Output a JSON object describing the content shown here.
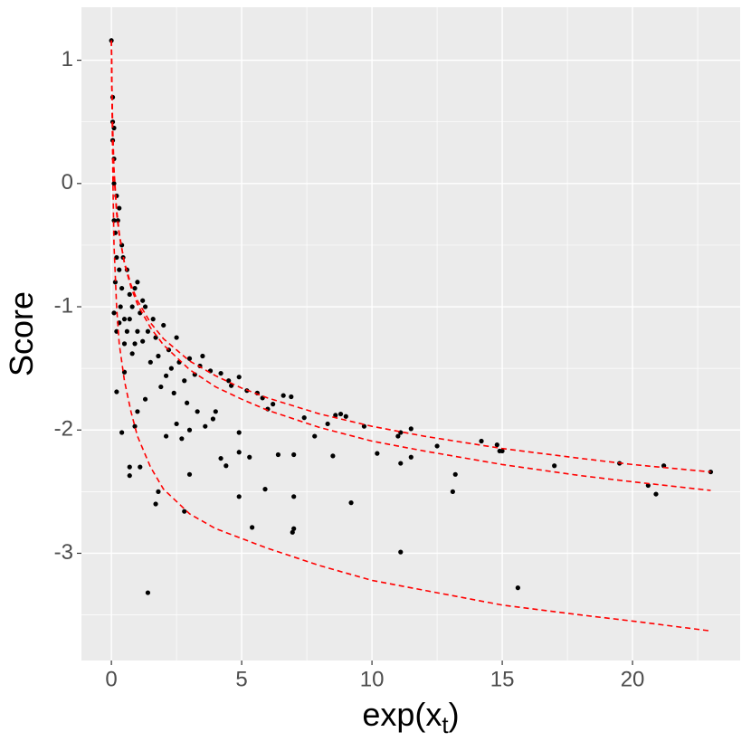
{
  "chart_data": {
    "type": "scatter",
    "x_label": [
      "exp(x",
      "t",
      ")"
    ],
    "y_label": "Score",
    "xlim": [
      -1.15,
      24.13
    ],
    "ylim": [
      -3.87,
      1.43
    ],
    "xticks": [
      0,
      5,
      10,
      15,
      20
    ],
    "yticks": [
      1,
      0,
      -1,
      -2,
      -3
    ],
    "xminor": [
      2.5,
      7.5,
      12.5,
      17.5,
      22.5
    ],
    "yminor": [
      0.5,
      -0.5,
      -1.5,
      -2.5,
      -3.5
    ],
    "grid": true,
    "series": [
      {
        "type": "scatter",
        "color": "#000000",
        "x": [
          0,
          1.4,
          15.6,
          11.1,
          9.2,
          5.4,
          7,
          6.95,
          7,
          5.9,
          4.9,
          2.8,
          1.7,
          1.8,
          0.7,
          0.7,
          1.1,
          3,
          4.2,
          4.4,
          4.9,
          5.3,
          6.4,
          7,
          8.5,
          10.2,
          11.1,
          11.5,
          13.1,
          13.2,
          12.5,
          14.9,
          15,
          14.8,
          14.2,
          17,
          19.5,
          20.6,
          20.9,
          21.2,
          23,
          11,
          11.1,
          11.5,
          9.7,
          8.8,
          8.6,
          9,
          8.3,
          7.4,
          7.8,
          6.6,
          6.9,
          6.2,
          6,
          5.8,
          5.6,
          5.2,
          4.9,
          4.9,
          4.6,
          4.2,
          4,
          3.9,
          3.6,
          3.3,
          3,
          2.9,
          2.7,
          2.5,
          2.4,
          2.1,
          1.9,
          2.1,
          1.3,
          1,
          0.9,
          0.2,
          0.4,
          0.5,
          0.3,
          0.2,
          0.35,
          0.5,
          0.8,
          1,
          1.2,
          1.5,
          1.8,
          2.2,
          2.6,
          3,
          3.4,
          3.8,
          1,
          1.3,
          1.6,
          2,
          2.5,
          3.5,
          0.6,
          0.7,
          0.8,
          0.4,
          0.25,
          0.2,
          0.1,
          0.05,
          0.05,
          0.1,
          0.15,
          0.3,
          0.4,
          0.5,
          0.6,
          0.1,
          0.2,
          0.15,
          0.1,
          0.05,
          0.1,
          0.3,
          0.45,
          0.7,
          0.9,
          1.1,
          1.4,
          1.7,
          2.3,
          2.8,
          3.2,
          4.5,
          1.2,
          0.9
        ],
        "values": [
          1.16,
          -3.32,
          -3.28,
          -2.99,
          -2.59,
          -2.79,
          -2.8,
          -2.83,
          -2.54,
          -2.48,
          -2.54,
          -2.66,
          -2.6,
          -2.5,
          -2.37,
          -2.3,
          -2.3,
          -2.36,
          -2.23,
          -2.29,
          -2.18,
          -2.22,
          -2.2,
          -2.2,
          -2.21,
          -2.19,
          -2.27,
          -2.22,
          -2.5,
          -2.36,
          -2.13,
          -2.17,
          -2.17,
          -2.12,
          -2.09,
          -2.29,
          -2.27,
          -2.45,
          -2.52,
          -2.29,
          -2.34,
          -2.05,
          -2.02,
          -1.99,
          -1.97,
          -1.87,
          -1.88,
          -1.89,
          -1.95,
          -1.9,
          -2.05,
          -1.72,
          -1.73,
          -1.79,
          -1.83,
          -1.74,
          -1.7,
          -1.68,
          -1.57,
          -2.02,
          -1.64,
          -1.54,
          -1.85,
          -1.91,
          -1.97,
          -1.85,
          -2,
          -1.78,
          -2.07,
          -1.95,
          -1.7,
          -1.56,
          -1.65,
          -2.05,
          -1.75,
          -1.85,
          -1.97,
          -1.69,
          -2.02,
          -1.53,
          -1.13,
          -1.2,
          -1,
          -1.3,
          -1.38,
          -1.2,
          -1.28,
          -1.45,
          -1.4,
          -1.35,
          -1.45,
          -1.42,
          -1.48,
          -1.52,
          -0.8,
          -1,
          -1.1,
          -1.15,
          -1.25,
          -1.4,
          -0.7,
          -0.9,
          -1,
          -0.5,
          -0.3,
          -0.1,
          0.2,
          0.5,
          0.7,
          0,
          -0.4,
          -0.7,
          -0.85,
          -1.1,
          -1.2,
          -0.3,
          -0.6,
          -0.8,
          -1.05,
          0.35,
          0.45,
          -0.2,
          -0.6,
          -1.1,
          -1.3,
          -1.05,
          -1.2,
          -1.25,
          -1.5,
          -1.6,
          -1.55,
          -1.6,
          -0.95,
          -0.85
        ]
      },
      {
        "type": "line",
        "color": "#ff0000",
        "dashed": true,
        "x": [
          0,
          0.02,
          0.05,
          0.1,
          0.2,
          0.3,
          0.5,
          0.75,
          1,
          1.5,
          2,
          3,
          4,
          5,
          6,
          8,
          10,
          12,
          15,
          18,
          20,
          23
        ],
        "values": [
          1.16,
          0.78,
          0.38,
          0.07,
          -0.24,
          -0.42,
          -0.64,
          -0.82,
          -0.95,
          -1.13,
          -1.26,
          -1.44,
          -1.56,
          -1.66,
          -1.74,
          -1.87,
          -1.97,
          -2.05,
          -2.15,
          -2.23,
          -2.28,
          -2.34
        ]
      },
      {
        "type": "line",
        "color": "#ff0000",
        "dashed": true,
        "x": [
          0,
          0.02,
          0.05,
          0.1,
          0.2,
          0.3,
          0.5,
          0.75,
          1,
          1.5,
          2,
          3,
          4,
          5,
          6,
          8,
          10,
          12,
          15,
          18,
          20,
          23
        ],
        "values": [
          1.16,
          0.8,
          0.46,
          0.12,
          -0.21,
          -0.4,
          -0.65,
          -0.84,
          -0.98,
          -1.17,
          -1.31,
          -1.51,
          -1.65,
          -1.75,
          -1.84,
          -1.98,
          -2.09,
          -2.17,
          -2.28,
          -2.37,
          -2.42,
          -2.49
        ]
      },
      {
        "type": "line",
        "color": "#ff0000",
        "dashed": true,
        "x": [
          0,
          0.03,
          0.06,
          0.1,
          0.2,
          0.3,
          0.5,
          0.75,
          1,
          1.5,
          2,
          3,
          4,
          5,
          6,
          8,
          10,
          12,
          15,
          18,
          20,
          23
        ],
        "values": [
          1.16,
          0.5,
          0,
          -0.5,
          -1,
          -1.3,
          -1.6,
          -1.85,
          -2.05,
          -2.3,
          -2.48,
          -2.68,
          -2.8,
          -2.88,
          -2.96,
          -3.1,
          -3.22,
          -3.3,
          -3.42,
          -3.5,
          -3.55,
          -3.63
        ]
      }
    ]
  }
}
